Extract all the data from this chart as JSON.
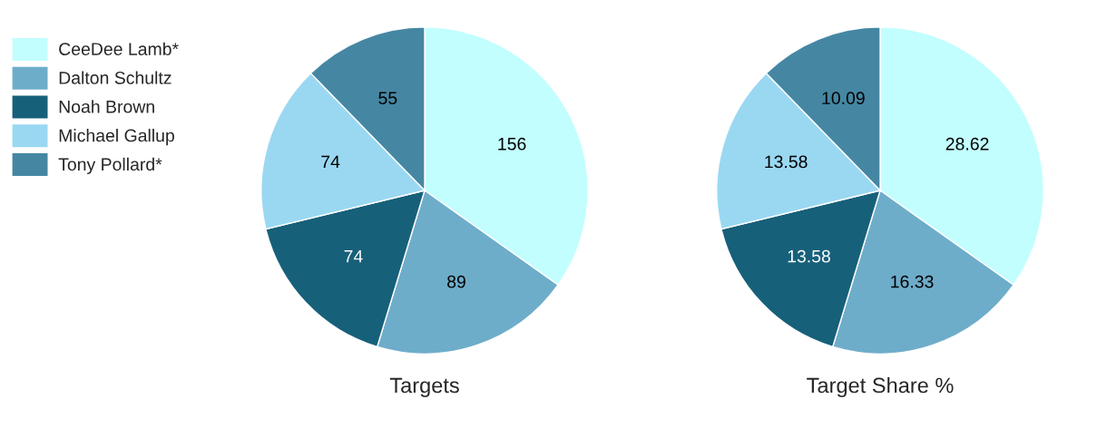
{
  "chart_data": [
    {
      "type": "pie",
      "title": "Targets",
      "categories": [
        "CeeDee Lamb*",
        "Dalton Schultz",
        "Noah Brown",
        "Michael Gallup",
        "Tony Pollard*"
      ],
      "values": [
        156,
        89,
        74,
        74,
        55
      ],
      "colors": [
        "#c2fefe",
        "#6eadca",
        "#17607a",
        "#9ad8f2",
        "#4587a3"
      ],
      "data_labels": true,
      "legend": "left"
    },
    {
      "type": "pie",
      "title": "Target Share %",
      "categories": [
        null,
        null,
        null,
        null,
        null
      ],
      "values": [
        28.62,
        16.33,
        13.58,
        13.58,
        10.09
      ],
      "colors": [
        "#c2fefe",
        "#6eadca",
        "#17607a",
        "#9ad8f2",
        "#4587a3"
      ],
      "data_labels": true
    }
  ]
}
